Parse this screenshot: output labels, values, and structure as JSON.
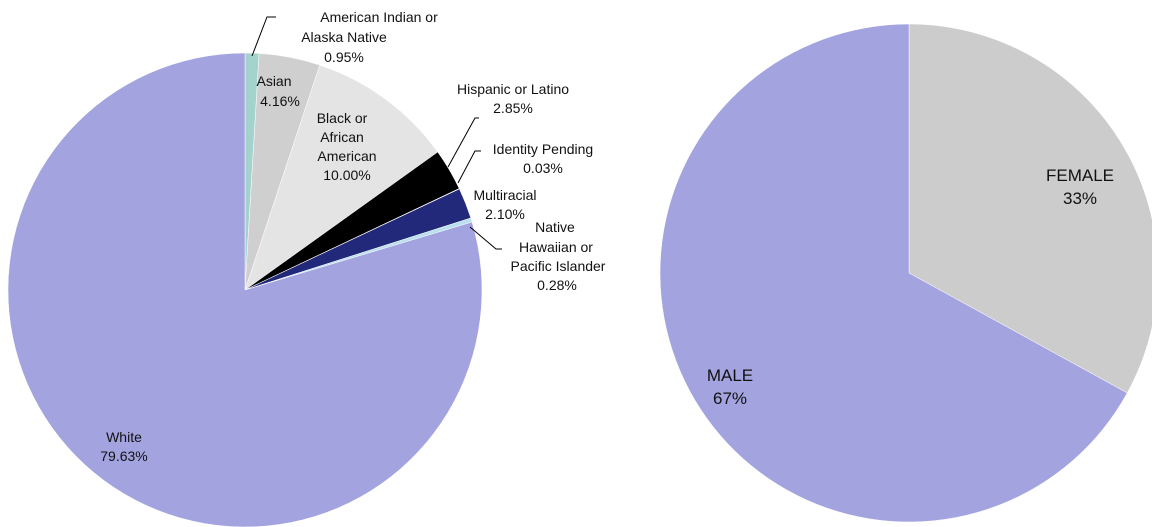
{
  "chart_data": [
    {
      "type": "pie",
      "start_angle_deg": 0,
      "direction": "clockwise",
      "slices": [
        {
          "name": "American Indian or Alaska Native",
          "value": 0.95,
          "label": "0.95%",
          "color": "#a4d3cd"
        },
        {
          "name": "Asian",
          "value": 4.16,
          "label": "4.16%",
          "color": "#cfcfcf"
        },
        {
          "name": "Black or African American",
          "value": 10.0,
          "label": "10.00%",
          "color": "#e4e4e4"
        },
        {
          "name": "Hispanic or Latino",
          "value": 2.85,
          "label": "2.85%",
          "color": "#000000"
        },
        {
          "name": "Identity Pending",
          "value": 0.03,
          "label": "0.03%",
          "color": "#ffffff"
        },
        {
          "name": "Multiracial",
          "value": 2.1,
          "label": "2.10%",
          "color": "#23297a"
        },
        {
          "name": "Native Hawaiian or Pacific Islander",
          "value": 0.28,
          "label": "0.28%",
          "color": "#b8e0ee"
        },
        {
          "name": "White",
          "value": 79.63,
          "label": "79.63%",
          "color": "#a3a3e0"
        }
      ]
    },
    {
      "type": "pie",
      "start_angle_deg": 0,
      "direction": "clockwise",
      "slices": [
        {
          "name": "FEMALE",
          "value": 33,
          "label": "33%",
          "color": "#cccccc"
        },
        {
          "name": "MALE",
          "value": 67,
          "label": "67%",
          "color": "#a3a3e0"
        }
      ]
    }
  ],
  "text": {
    "american_indian_line1": "American Indian or",
    "american_indian_line2": "Alaska Native",
    "asian": "Asian",
    "black_line1": "Black or",
    "black_line2": "African",
    "black_line3": "American",
    "hispanic": "Hispanic or Latino",
    "identity_pending": "Identity Pending",
    "multiracial": "Multiracial",
    "native_hawaiian_line1": "Native",
    "native_hawaiian_line2": "Hawaiian or",
    "native_hawaiian_line3": "Pacific Islander",
    "white": "White",
    "female": "FEMALE",
    "male": "MALE"
  }
}
